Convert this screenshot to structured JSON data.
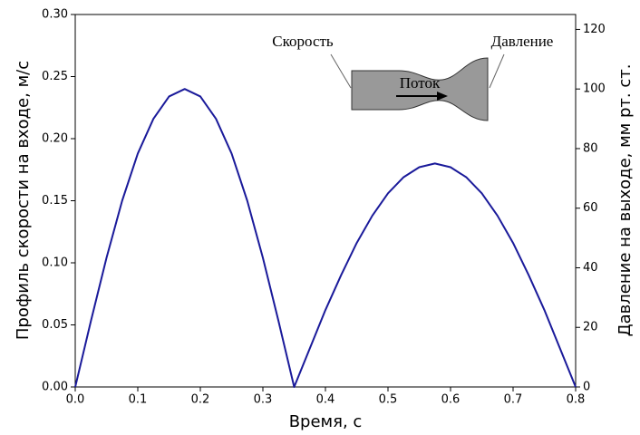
{
  "chart_data": {
    "type": "line",
    "xlabel": "Время, с",
    "ylabel": "Профиль скорости на входе, м/с",
    "y2label": "Давление на выходе, мм рт. ст.",
    "annotations": {
      "inlet": "Скорость",
      "outlet": "Давление",
      "flow": "Поток"
    },
    "x": [
      0,
      0.025,
      0.05,
      0.075,
      0.1,
      0.125,
      0.15,
      0.175,
      0.2,
      0.225,
      0.25,
      0.275,
      0.3,
      0.325,
      0.35,
      0.375,
      0.4,
      0.425,
      0.45,
      0.475,
      0.5,
      0.525,
      0.55,
      0.575,
      0.6,
      0.625,
      0.65,
      0.675,
      0.7,
      0.725,
      0.75,
      0.775,
      0.8
    ],
    "series": [
      {
        "color": "#1a1a9a",
        "values": [
          0,
          0.053,
          0.104,
          0.15,
          0.188,
          0.216,
          0.234,
          0.24,
          0.234,
          0.216,
          0.188,
          0.15,
          0.104,
          0.053,
          0,
          0.031,
          0.062,
          0.09,
          0.116,
          0.138,
          0.156,
          0.169,
          0.177,
          0.18,
          0.177,
          0.169,
          0.156,
          0.138,
          0.116,
          0.09,
          0.062,
          0.031,
          0
        ]
      }
    ],
    "xlim": [
      0,
      0.8
    ],
    "xticks": [
      {
        "value": 0,
        "label": "0.0"
      },
      {
        "value": 0.1,
        "label": "0.1"
      },
      {
        "value": 0.2,
        "label": "0.2"
      },
      {
        "value": 0.3,
        "label": "0.3"
      },
      {
        "value": 0.4,
        "label": "0.4"
      },
      {
        "value": 0.5,
        "label": "0.5"
      },
      {
        "value": 0.6,
        "label": "0.6"
      },
      {
        "value": 0.7,
        "label": "0.7"
      },
      {
        "value": 0.8,
        "label": "0.8"
      }
    ],
    "ylim": [
      0,
      0.3
    ],
    "yticks": [
      {
        "value": 0,
        "label": "0.00"
      },
      {
        "value": 0.05,
        "label": "0.05"
      },
      {
        "value": 0.1,
        "label": "0.10"
      },
      {
        "value": 0.15,
        "label": "0.15"
      },
      {
        "value": 0.2,
        "label": "0.20"
      },
      {
        "value": 0.25,
        "label": "0.25"
      },
      {
        "value": 0.3,
        "label": "0.30"
      }
    ],
    "y2lim": [
      0,
      125
    ],
    "y2ticks": [
      0,
      20,
      40,
      60,
      80,
      100,
      120
    ]
  }
}
